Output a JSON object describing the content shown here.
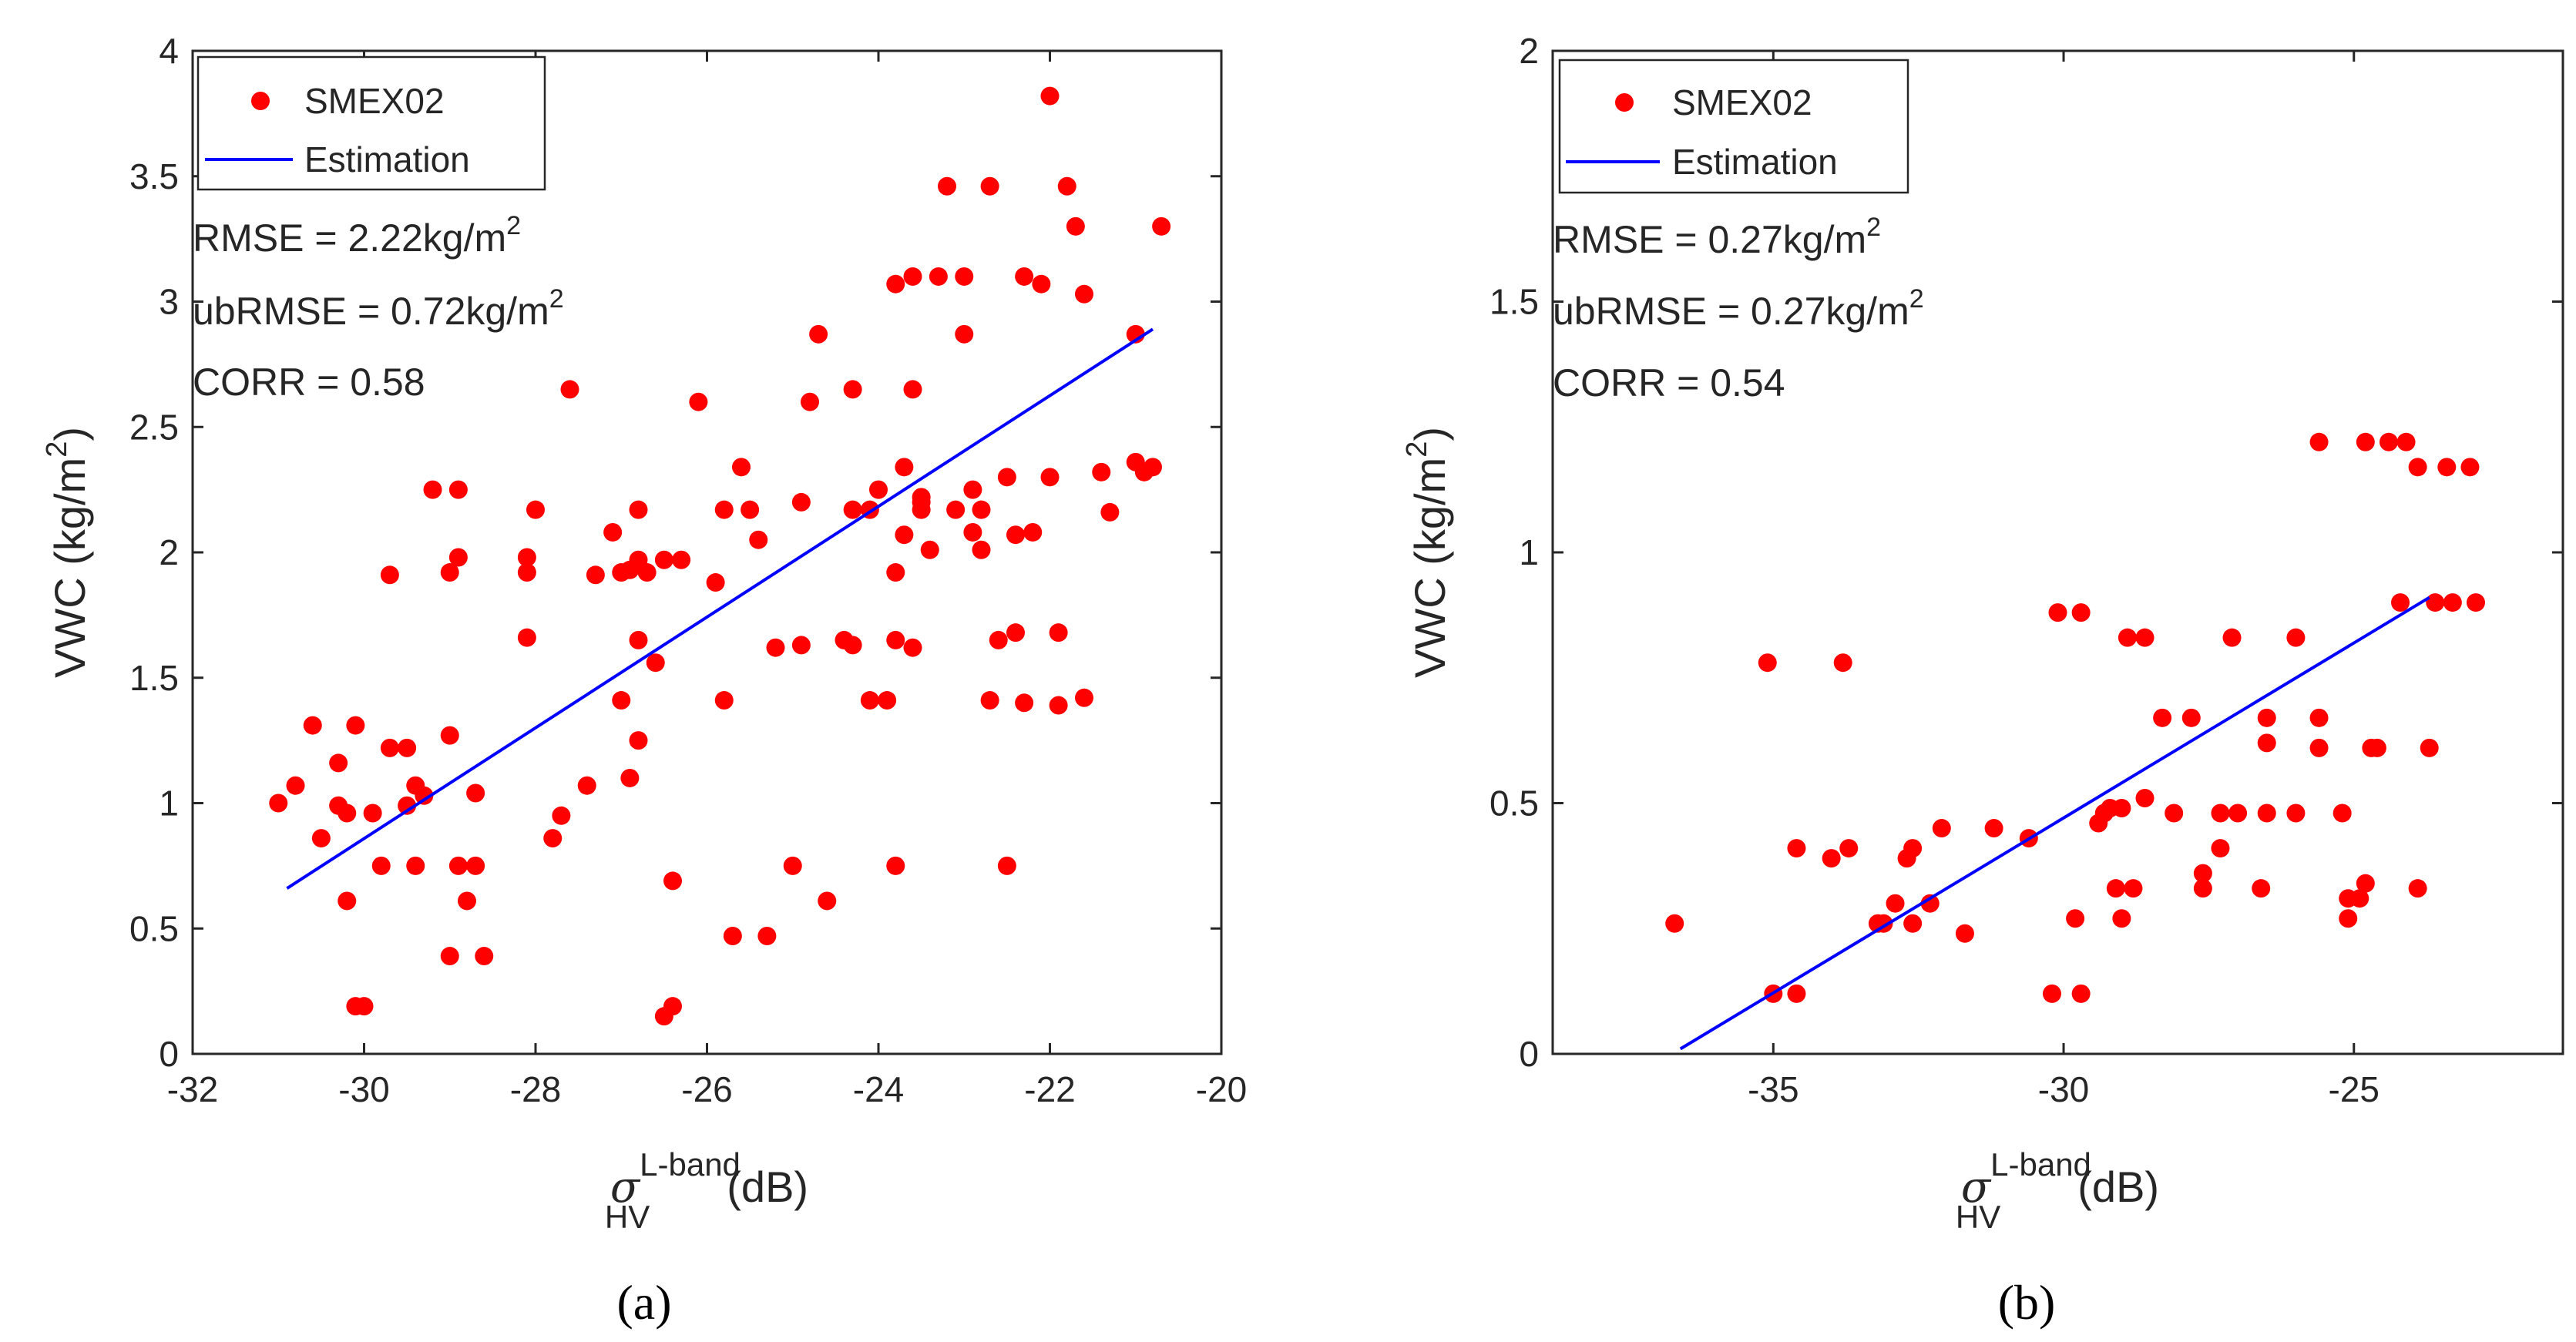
{
  "colors": {
    "points": "#ff0000",
    "line": "#0000ff",
    "axes": "#262626"
  },
  "chart_data": [
    {
      "type": "scatter",
      "panel": "a",
      "caption": "(a)",
      "xlabel_sym": "σ",
      "xlabel_sup": "L-band",
      "xlabel_sub": "HV",
      "xlabel_unit": "(dB)",
      "ylabel": "VWC (kg/m",
      "ylabel_sup": "2",
      "ylabel_end": ")",
      "xlim": [
        -32,
        -20
      ],
      "ylim": [
        0,
        4
      ],
      "xticks": [
        -32,
        -30,
        -28,
        -26,
        -24,
        -22,
        -20
      ],
      "xtick_labels": [
        "-32",
        "-30",
        "-28",
        "-26",
        "-24",
        "-22",
        "-20"
      ],
      "yticks": [
        0,
        0.5,
        1,
        1.5,
        2,
        2.5,
        3,
        3.5,
        4
      ],
      "ytick_labels": [
        "0",
        "0.5",
        "1",
        "1.5",
        "2",
        "2.5",
        "3",
        "3.5",
        "4"
      ],
      "legend": {
        "position": "top-left",
        "points_label": "SMEX02",
        "line_label": "Estimation"
      },
      "stats": [
        {
          "text": "RMSE = 2.22kg/m",
          "sup": "2"
        },
        {
          "text": "ubRMSE = 0.72kg/m",
          "sup": "2"
        },
        {
          "text": "CORR = 0.58",
          "sup": ""
        }
      ],
      "fit_line": {
        "x": [
          -30.9,
          -20.8
        ],
        "y": [
          0.66,
          2.89
        ]
      },
      "points": [
        [
          -31.0,
          1.0
        ],
        [
          -30.8,
          1.07
        ],
        [
          -30.6,
          1.31
        ],
        [
          -30.5,
          0.86
        ],
        [
          -30.3,
          0.99
        ],
        [
          -30.3,
          1.16
        ],
        [
          -30.2,
          0.61
        ],
        [
          -30.2,
          0.96
        ],
        [
          -30.1,
          1.31
        ],
        [
          -30.1,
          0.19
        ],
        [
          -30.0,
          0.19
        ],
        [
          -29.9,
          0.96
        ],
        [
          -29.8,
          0.75
        ],
        [
          -29.7,
          1.22
        ],
        [
          -29.7,
          1.91
        ],
        [
          -29.5,
          1.22
        ],
        [
          -29.5,
          0.99
        ],
        [
          -29.4,
          1.07
        ],
        [
          -29.4,
          0.75
        ],
        [
          -29.3,
          1.03
        ],
        [
          -29.2,
          2.25
        ],
        [
          -29.0,
          1.92
        ],
        [
          -29.0,
          1.27
        ],
        [
          -28.9,
          1.98
        ],
        [
          -28.9,
          0.75
        ],
        [
          -28.7,
          0.75
        ],
        [
          -29.0,
          0.39
        ],
        [
          -28.8,
          0.61
        ],
        [
          -28.7,
          1.04
        ],
        [
          -28.6,
          0.39
        ],
        [
          -28.9,
          2.25
        ],
        [
          -28.1,
          1.66
        ],
        [
          -28.1,
          1.92
        ],
        [
          -28.1,
          1.98
        ],
        [
          -28.0,
          2.17
        ],
        [
          -27.8,
          0.86
        ],
        [
          -27.7,
          0.95
        ],
        [
          -27.6,
          2.65
        ],
        [
          -27.4,
          1.07
        ],
        [
          -27.3,
          1.91
        ],
        [
          -27.1,
          2.08
        ],
        [
          -27.0,
          1.92
        ],
        [
          -26.9,
          1.93
        ],
        [
          -26.8,
          1.97
        ],
        [
          -26.8,
          2.17
        ],
        [
          -27.0,
          1.41
        ],
        [
          -26.9,
          1.1
        ],
        [
          -26.8,
          1.25
        ],
        [
          -26.8,
          1.65
        ],
        [
          -26.6,
          1.56
        ],
        [
          -26.7,
          1.92
        ],
        [
          -26.5,
          1.97
        ],
        [
          -26.5,
          0.15
        ],
        [
          -26.4,
          0.19
        ],
        [
          -26.4,
          0.69
        ],
        [
          -26.3,
          1.97
        ],
        [
          -26.1,
          2.6
        ],
        [
          -25.9,
          1.88
        ],
        [
          -25.8,
          2.17
        ],
        [
          -25.8,
          1.41
        ],
        [
          -25.7,
          0.47
        ],
        [
          -25.6,
          2.34
        ],
        [
          -25.5,
          2.17
        ],
        [
          -25.4,
          2.05
        ],
        [
          -25.3,
          0.47
        ],
        [
          -25.2,
          1.62
        ],
        [
          -25.0,
          0.75
        ],
        [
          -24.9,
          2.2
        ],
        [
          -24.9,
          1.63
        ],
        [
          -24.8,
          2.6
        ],
        [
          -24.7,
          2.87
        ],
        [
          -24.6,
          0.61
        ],
        [
          -24.4,
          1.65
        ],
        [
          -24.3,
          2.65
        ],
        [
          -24.3,
          1.63
        ],
        [
          -24.1,
          1.41
        ],
        [
          -24.0,
          2.25
        ],
        [
          -23.9,
          1.41
        ],
        [
          -23.8,
          1.65
        ],
        [
          -23.8,
          3.07
        ],
        [
          -23.8,
          1.92
        ],
        [
          -23.8,
          0.75
        ],
        [
          -23.7,
          2.34
        ],
        [
          -23.6,
          1.62
        ],
        [
          -23.6,
          2.65
        ],
        [
          -23.5,
          2.2
        ],
        [
          -23.5,
          2.17
        ],
        [
          -23.4,
          2.01
        ],
        [
          -23.3,
          3.1
        ],
        [
          -23.2,
          3.46
        ],
        [
          -23.1,
          2.17
        ],
        [
          -23.0,
          3.1
        ],
        [
          -23.0,
          2.87
        ],
        [
          -22.9,
          2.08
        ],
        [
          -22.9,
          2.25
        ],
        [
          -22.8,
          2.17
        ],
        [
          -22.8,
          2.01
        ],
        [
          -22.7,
          3.46
        ],
        [
          -22.7,
          1.41
        ],
        [
          -22.6,
          1.65
        ],
        [
          -22.5,
          2.3
        ],
        [
          -22.5,
          0.75
        ],
        [
          -22.4,
          2.07
        ],
        [
          -22.4,
          1.68
        ],
        [
          -22.3,
          3.1
        ],
        [
          -22.3,
          1.4
        ],
        [
          -22.2,
          2.08
        ],
        [
          -22.1,
          3.07
        ],
        [
          -22.0,
          2.3
        ],
        [
          -21.9,
          1.68
        ],
        [
          -21.9,
          1.39
        ],
        [
          -21.8,
          3.46
        ],
        [
          -21.7,
          3.3
        ],
        [
          -21.6,
          1.42
        ],
        [
          -21.6,
          3.03
        ],
        [
          -21.4,
          2.32
        ],
        [
          -21.3,
          2.16
        ],
        [
          -22.0,
          3.82
        ],
        [
          -21.0,
          2.87
        ],
        [
          -20.9,
          2.32
        ],
        [
          -20.8,
          2.34
        ],
        [
          -20.7,
          3.3
        ],
        [
          -21.0,
          2.36
        ],
        [
          -23.7,
          2.07
        ],
        [
          -24.1,
          2.17
        ],
        [
          -23.5,
          2.22
        ],
        [
          -23.6,
          3.1
        ],
        [
          -24.3,
          2.17
        ]
      ]
    },
    {
      "type": "scatter",
      "panel": "b",
      "caption": "(b)",
      "xlabel_sym": "σ",
      "xlabel_sup": "L-band",
      "xlabel_sub": "HV",
      "xlabel_unit": "(dB)",
      "ylabel": "VWC (kg/m",
      "ylabel_sup": "2",
      "ylabel_end": ")",
      "xlim": [
        -38.8,
        -21.4
      ],
      "ylim": [
        0,
        2
      ],
      "xticks": [
        -35,
        -30,
        -25
      ],
      "xtick_labels": [
        "-35",
        "-30",
        "-25"
      ],
      "yticks": [
        0,
        0.5,
        1,
        1.5,
        2
      ],
      "ytick_labels": [
        "0",
        "0.5",
        "1",
        "1.5",
        "2"
      ],
      "legend": {
        "position": "top-left",
        "points_label": "SMEX02",
        "line_label": "Estimation"
      },
      "stats": [
        {
          "text": "RMSE = 0.27kg/m",
          "sup": "2"
        },
        {
          "text": "ubRMSE = 0.27kg/m",
          "sup": "2"
        },
        {
          "text": "CORR = 0.54",
          "sup": ""
        }
      ],
      "fit_line": {
        "x": [
          -36.6,
          -23.7
        ],
        "y": [
          0.01,
          0.91
        ]
      },
      "points": [
        [
          -36.7,
          0.26
        ],
        [
          -35.1,
          0.78
        ],
        [
          -35.0,
          0.12
        ],
        [
          -34.6,
          0.41
        ],
        [
          -34.6,
          0.12
        ],
        [
          -34.0,
          0.39
        ],
        [
          -33.7,
          0.41
        ],
        [
          -33.8,
          0.78
        ],
        [
          -33.2,
          0.26
        ],
        [
          -33.1,
          0.26
        ],
        [
          -32.9,
          0.3
        ],
        [
          -32.7,
          0.39
        ],
        [
          -32.6,
          0.26
        ],
        [
          -32.6,
          0.41
        ],
        [
          -32.3,
          0.3
        ],
        [
          -32.1,
          0.45
        ],
        [
          -31.7,
          0.24
        ],
        [
          -31.2,
          0.45
        ],
        [
          -30.6,
          0.43
        ],
        [
          -30.2,
          0.12
        ],
        [
          -30.1,
          0.88
        ],
        [
          -29.8,
          0.27
        ],
        [
          -29.7,
          0.12
        ],
        [
          -29.7,
          0.88
        ],
        [
          -29.4,
          0.46
        ],
        [
          -29.3,
          0.48
        ],
        [
          -29.2,
          0.49
        ],
        [
          -29.1,
          0.33
        ],
        [
          -29.0,
          0.49
        ],
        [
          -29.0,
          0.27
        ],
        [
          -28.9,
          0.83
        ],
        [
          -28.8,
          0.33
        ],
        [
          -28.6,
          0.83
        ],
        [
          -28.6,
          0.51
        ],
        [
          -28.3,
          0.67
        ],
        [
          -28.1,
          0.48
        ],
        [
          -27.8,
          0.67
        ],
        [
          -27.6,
          0.33
        ],
        [
          -27.6,
          0.36
        ],
        [
          -27.3,
          0.48
        ],
        [
          -27.3,
          0.41
        ],
        [
          -27.1,
          0.83
        ],
        [
          -27.0,
          0.48
        ],
        [
          -26.6,
          0.33
        ],
        [
          -26.5,
          0.62
        ],
        [
          -26.5,
          0.67
        ],
        [
          -26.5,
          0.48
        ],
        [
          -26.0,
          0.83
        ],
        [
          -26.0,
          0.48
        ],
        [
          -25.6,
          0.61
        ],
        [
          -25.6,
          0.67
        ],
        [
          -25.6,
          1.22
        ],
        [
          -25.2,
          0.48
        ],
        [
          -25.1,
          0.27
        ],
        [
          -25.1,
          0.31
        ],
        [
          -24.9,
          0.31
        ],
        [
          -24.8,
          0.34
        ],
        [
          -24.7,
          0.61
        ],
        [
          -24.8,
          1.22
        ],
        [
          -24.6,
          0.61
        ],
        [
          -24.4,
          1.22
        ],
        [
          -24.2,
          0.9
        ],
        [
          -24.1,
          1.22
        ],
        [
          -23.9,
          1.17
        ],
        [
          -23.9,
          0.33
        ],
        [
          -23.7,
          0.61
        ],
        [
          -23.6,
          0.9
        ],
        [
          -23.4,
          1.17
        ],
        [
          -23.3,
          0.9
        ],
        [
          -23.0,
          1.17
        ],
        [
          -22.9,
          0.9
        ]
      ]
    }
  ]
}
